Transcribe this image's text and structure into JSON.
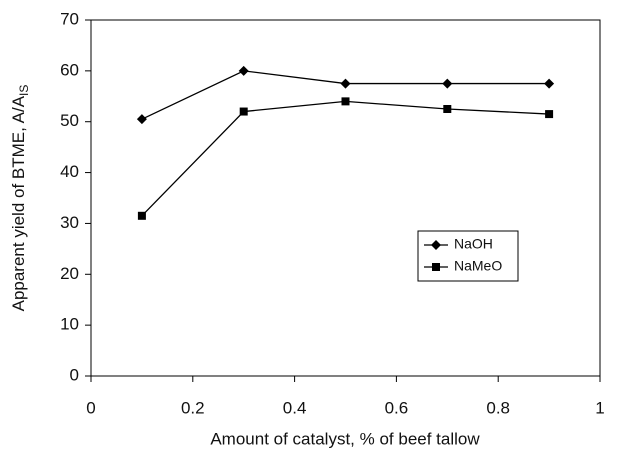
{
  "chart_data": {
    "type": "line",
    "x_label": "Amount of catalyst, % of beef tallow",
    "y_label": "Apparent yield of BTME, A/A",
    "y_label_subscript": "IS",
    "x": [
      0.1,
      0.3,
      0.5,
      0.7,
      0.9
    ],
    "series": [
      {
        "name": "NaOH",
        "color": "#000000",
        "marker": "diamond",
        "values": [
          50.5,
          60,
          57.5,
          57.5,
          57.5
        ]
      },
      {
        "name": "NaMeO",
        "color": "#000000",
        "marker": "square",
        "values": [
          31.5,
          52,
          54,
          52.5,
          51.5
        ]
      }
    ],
    "xlim": [
      0,
      1
    ],
    "xticks": [
      0,
      0.2,
      0.4,
      0.6,
      0.8,
      1
    ],
    "ylim": [
      0,
      70
    ],
    "yticks": [
      0,
      10,
      20,
      30,
      40,
      50,
      60,
      70
    ],
    "grid": false,
    "legend_position": "center right"
  }
}
